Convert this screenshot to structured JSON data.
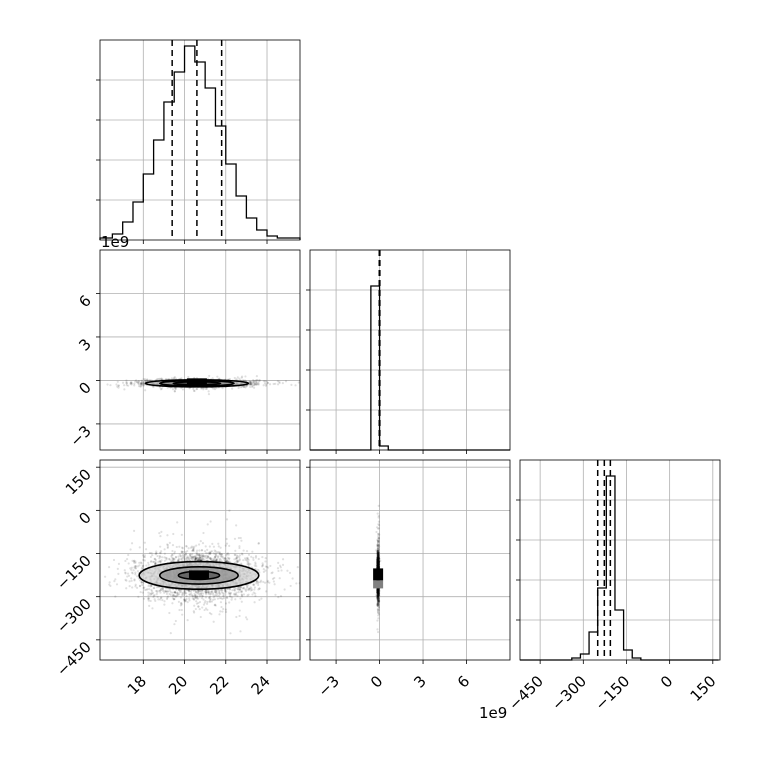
{
  "figure": {
    "type": "corner-plot",
    "parameters": 3,
    "offset_text_y": "1e9",
    "offset_text_x": "1e9"
  },
  "chart_data": [
    {
      "id": "hist-p1",
      "type": "bar",
      "panel": "1,1",
      "histtype": "step",
      "bin_edges": [
        15.9,
        16.5,
        17.0,
        17.5,
        18.0,
        18.5,
        19.0,
        19.5,
        20.0,
        20.5,
        21.0,
        21.5,
        22.0,
        22.5,
        23.0,
        23.5,
        24.0,
        24.5,
        25.0,
        25.6
      ],
      "counts": [
        1,
        3,
        9,
        19,
        33,
        50,
        69,
        84,
        97,
        89,
        76,
        57,
        38,
        22,
        11,
        5,
        2,
        1,
        1
      ],
      "quantiles": [
        19.4,
        20.6,
        21.8
      ],
      "xlim": [
        15.9,
        25.6
      ],
      "x_ticks": [
        18,
        20,
        22,
        24
      ],
      "ylim": [
        0,
        100
      ],
      "grid": true
    },
    {
      "id": "hist-p2",
      "type": "bar",
      "panel": "2,2",
      "histtype": "step",
      "x_units_multiplier": 1000000000.0,
      "bin_edges": [
        -4.8,
        -4.2,
        -3.6,
        -3.0,
        -2.4,
        -1.8,
        -1.2,
        -0.6,
        0.0,
        0.6,
        1.2,
        1.8,
        2.4,
        3.0,
        3.6,
        4.2,
        4.8,
        5.4,
        6.0,
        6.6,
        7.2,
        7.8,
        8.4,
        9.0
      ],
      "counts": [
        0,
        0,
        0,
        0,
        0,
        0,
        0,
        82,
        2,
        0,
        0,
        0,
        0,
        0,
        0,
        0,
        0,
        0,
        0,
        0,
        0,
        0,
        0
      ],
      "quantiles": [
        -0.02,
        0.0,
        0.02
      ],
      "xlim": [
        -4.8,
        9.0
      ],
      "x_ticks": [
        -3,
        0,
        3,
        6
      ],
      "ylim": [
        0,
        100
      ],
      "grid": true
    },
    {
      "id": "hist-p3",
      "type": "bar",
      "panel": "3,3",
      "histtype": "step",
      "bin_edges": [
        -520,
        -490,
        -460,
        -430,
        -400,
        -370,
        -340,
        -310,
        -280,
        -250,
        -220,
        -190,
        -160,
        -130,
        -100,
        -70,
        -40,
        -10,
        20,
        50,
        80,
        110,
        140,
        170
      ],
      "counts": [
        0,
        0,
        0,
        0,
        0,
        0,
        1,
        3,
        14,
        36,
        92,
        25,
        5,
        1,
        0,
        0,
        0,
        0,
        0,
        0,
        0,
        0,
        0
      ],
      "quantiles": [
        -250,
        -227,
        -206
      ],
      "xlim": [
        -520,
        175
      ],
      "x_ticks": [
        -450,
        -300,
        -150,
        0,
        150
      ],
      "ylim": [
        0,
        100
      ],
      "grid": true
    },
    {
      "id": "scatter-p1-p2",
      "type": "scatter",
      "panel": "2,1",
      "x_param": "p1",
      "y_param": "p2",
      "y_units_multiplier": 1000000000.0,
      "center": [
        20.6,
        -0.2
      ],
      "spread": [
        1.3,
        0.12
      ],
      "n_points": 1800,
      "contour_halfwidths": [
        [
          1.15,
          0.1
        ],
        [
          1.8,
          0.18
        ],
        [
          2.5,
          0.24
        ]
      ],
      "xlim": [
        15.9,
        25.6
      ],
      "ylim": [
        -4.8,
        9.0
      ],
      "y_ticks": [
        -3,
        0,
        3,
        6
      ],
      "grid": true
    },
    {
      "id": "scatter-p1-p3",
      "type": "scatter",
      "panel": "3,1",
      "x_param": "p1",
      "y_param": "p3",
      "center": [
        20.7,
        -226
      ],
      "spread": [
        1.3,
        38
      ],
      "n_points": 3200,
      "contour_halfwidths": [
        [
          1.0,
          14
        ],
        [
          1.9,
          30
        ],
        [
          2.9,
          48
        ]
      ],
      "xlim": [
        15.9,
        25.6
      ],
      "ylim": [
        -520,
        175
      ],
      "x_ticks": [
        18,
        20,
        22,
        24
      ],
      "y_ticks": [
        -450,
        -300,
        -150,
        0,
        150
      ],
      "grid": true
    },
    {
      "id": "scatter-p2-p3",
      "type": "scatter",
      "panel": "3,2",
      "x_param": "p2",
      "y_param": "p3",
      "x_units_multiplier": 1000000000.0,
      "center": [
        -0.1,
        -226
      ],
      "spread": [
        0.03,
        40
      ],
      "n_points": 1800,
      "xlim": [
        -4.8,
        9.0
      ],
      "ylim": [
        -520,
        175
      ],
      "x_ticks": [
        -3,
        0,
        3,
        6
      ],
      "grid": true
    }
  ]
}
